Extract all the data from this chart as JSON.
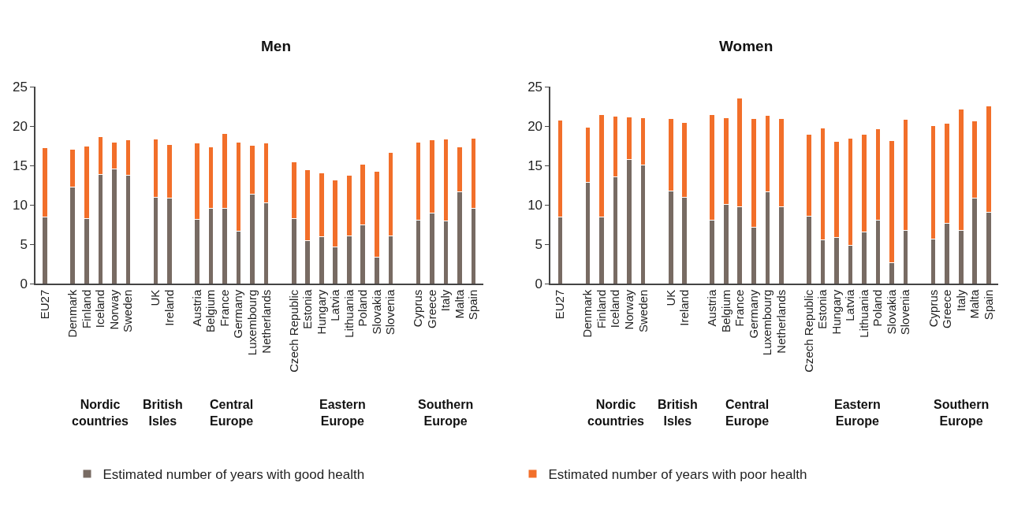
{
  "chart_data": [
    {
      "type": "bar",
      "title": "Men",
      "stacked": true,
      "categories": [
        "EU27",
        null,
        "Denmark",
        "Finland",
        "Iceland",
        "Norway",
        "Sweden",
        null,
        "UK",
        "Ireland",
        null,
        "Austria",
        "Belgium",
        "France",
        "Germany",
        "Luxembourg",
        "Netherlands",
        null,
        "Czech Republic",
        "Estonia",
        "Hungary",
        "Latvia",
        "Lithuania",
        "Poland",
        "Slovakia",
        "Slovenia",
        null,
        "Cyprus",
        "Greece",
        "Italy",
        "Malta",
        "Spain"
      ],
      "series": [
        {
          "name": "Estimated number of years with good health",
          "color": "#786b63",
          "values": [
            8.5,
            null,
            12.3,
            8.3,
            13.9,
            14.6,
            13.8,
            null,
            11.0,
            10.9,
            null,
            8.2,
            9.6,
            9.6,
            6.7,
            11.4,
            10.3,
            null,
            8.3,
            5.5,
            6.0,
            4.7,
            6.1,
            7.5,
            3.4,
            6.1,
            null,
            8.1,
            9.0,
            8.0,
            11.7,
            9.6
          ]
        },
        {
          "name": "Estimated number of years with poor health",
          "color": "#f26f2a",
          "values": [
            8.8,
            null,
            4.8,
            9.2,
            4.8,
            3.4,
            4.5,
            null,
            7.4,
            6.8,
            null,
            9.7,
            7.8,
            9.5,
            11.3,
            6.2,
            7.6,
            null,
            7.2,
            9.0,
            8.1,
            8.5,
            7.7,
            7.7,
            10.9,
            10.6,
            null,
            9.9,
            9.3,
            10.4,
            5.7,
            8.9
          ]
        }
      ],
      "ylim": [
        0,
        25
      ],
      "yticks": [
        0,
        5,
        10,
        15,
        20,
        25
      ],
      "grid": false,
      "legend": "bottom",
      "annotations": [
        "Nordic\ncountries",
        "British\nIsles",
        "Central\nEurope",
        "Eastern\nEurope",
        "Southern\nEurope"
      ]
    },
    {
      "type": "bar",
      "title": "Women",
      "stacked": true,
      "categories": [
        "EU27",
        null,
        "Denmark",
        "Finland",
        "Iceland",
        "Norway",
        "Sweden",
        null,
        "UK",
        "Ireland",
        null,
        "Austria",
        "Belgium",
        "France",
        "Germany",
        "Luxembourg",
        "Netherlands",
        null,
        "Czech Republic",
        "Estonia",
        "Hungary",
        "Latvia",
        "Lithuania",
        "Poland",
        "Slovakia",
        "Slovenia",
        null,
        "Cyprus",
        "Greece",
        "Italy",
        "Malta",
        "Spain"
      ],
      "series": [
        {
          "color": "#786b63",
          "values": [
            8.5,
            null,
            12.9,
            8.5,
            13.6,
            15.8,
            15.1,
            null,
            11.8,
            11.0,
            null,
            8.1,
            10.1,
            9.8,
            7.2,
            11.7,
            9.8,
            null,
            8.6,
            5.6,
            5.9,
            4.9,
            6.6,
            8.1,
            2.7,
            6.8,
            null,
            5.7,
            7.7,
            6.8,
            10.9,
            9.1
          ]
        },
        {
          "color": "#f26f2a",
          "values": [
            12.3,
            null,
            7.0,
            13.0,
            7.7,
            5.4,
            6.0,
            null,
            9.2,
            9.5,
            null,
            13.4,
            11.0,
            13.8,
            13.8,
            9.7,
            11.2,
            null,
            10.4,
            14.2,
            12.2,
            13.6,
            12.4,
            11.6,
            15.5,
            14.1,
            null,
            14.4,
            12.7,
            15.4,
            9.8,
            13.5
          ]
        }
      ],
      "ylim": [
        0,
        25
      ],
      "yticks": [
        0,
        5,
        10,
        15,
        20,
        25
      ],
      "grid": false,
      "annotations": [
        "Nordic\ncountries",
        "British\nIsles",
        "Central\nEurope",
        "Eastern\nEurope",
        "Southern\nEurope"
      ]
    }
  ]
}
